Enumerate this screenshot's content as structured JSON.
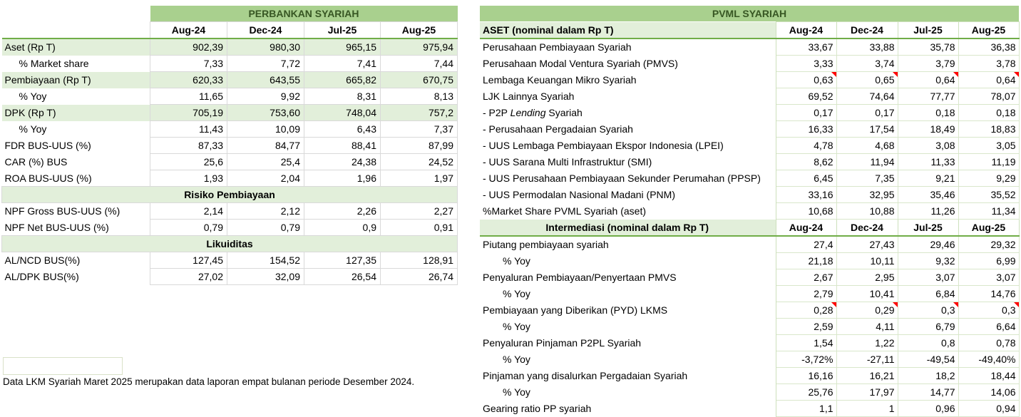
{
  "colors": {
    "title_bg": "#A9D08E",
    "title_text": "#375623",
    "highlight_row_bg": "#E2EFDA",
    "header_underline": "#70AD47",
    "comment_marker": "#FF0000"
  },
  "perbankan": {
    "title": "PERBANKAN SYARIAH",
    "columns": [
      "Aug-24",
      "Dec-24",
      "Jul-25",
      "Aug-25"
    ],
    "rows": [
      {
        "label": "Aset (Rp T)",
        "values": [
          "902,39",
          "980,30",
          "965,15",
          "975,94"
        ],
        "highlight": true
      },
      {
        "label": "% Market share",
        "indent": true,
        "values": [
          "7,33",
          "7,72",
          "7,41",
          "7,44"
        ]
      },
      {
        "label": "Pembiayaan (Rp T)",
        "values": [
          "620,33",
          "643,55",
          "665,82",
          "670,75"
        ],
        "highlight": true
      },
      {
        "label": "% Yoy",
        "indent": true,
        "values": [
          "11,65",
          "9,92",
          "8,31",
          "8,13"
        ]
      },
      {
        "label": "DPK (Rp T)",
        "values": [
          "705,19",
          "753,60",
          "748,04",
          "757,2"
        ],
        "highlight": true
      },
      {
        "label": "% Yoy",
        "indent": true,
        "values": [
          "11,43",
          "10,09",
          "6,43",
          "7,37"
        ]
      },
      {
        "label": "FDR BUS-UUS (%)",
        "values": [
          "87,33",
          "84,77",
          "88,41",
          "87,99"
        ]
      },
      {
        "label": "CAR (%) BUS",
        "values": [
          "25,6",
          "25,4",
          "24,38",
          "24,52"
        ]
      },
      {
        "label": "ROA  BUS-UUS (%)",
        "values": [
          "1,93",
          "2,04",
          "1,96",
          "1,97"
        ]
      },
      {
        "section": "Risiko Pembiayaan"
      },
      {
        "label": "NPF Gross BUS-UUS (%)",
        "values": [
          "2,14",
          "2,12",
          "2,26",
          "2,27"
        ]
      },
      {
        "label": "NPF Net BUS-UUS (%)",
        "values": [
          "0,79",
          "0,79",
          "0,9",
          "0,91"
        ]
      },
      {
        "section": "Likuiditas"
      },
      {
        "label": "AL/NCD BUS(%)",
        "values": [
          "127,45",
          "154,52",
          "127,35",
          "128,91"
        ]
      },
      {
        "label": "AL/DPK BUS(%)",
        "values": [
          "27,02",
          "32,09",
          "26,54",
          "26,74"
        ]
      }
    ]
  },
  "pvml": {
    "title": "PVML SYARIAH",
    "sections": [
      {
        "header": "ASET (nominal dalam Rp T)",
        "header_align": "left",
        "columns": [
          "Aug-24",
          "Dec-24",
          "Jul-25",
          "Aug-25"
        ],
        "rows": [
          {
            "label": "Perusahaan Pembiayaan Syariah",
            "values": [
              "33,67",
              "33,88",
              "35,78",
              "36,38"
            ]
          },
          {
            "label": "Perusahaan Modal Ventura Syariah (PMVS)",
            "values": [
              "3,33",
              "3,74",
              "3,79",
              "3,78"
            ]
          },
          {
            "label": "Lembaga Keuangan Mikro Syariah",
            "values": [
              "0,63",
              "0,65",
              "0,64",
              "0,64"
            ],
            "comment": true
          },
          {
            "label": "LJK Lainnya Syariah",
            "values": [
              "69,52",
              "74,64",
              "77,77",
              "78,07"
            ]
          },
          {
            "label_pre": "- P2P ",
            "label_italic": "Lending",
            "label_post": " Syariah",
            "values": [
              "0,17",
              "0,17",
              "0,18",
              "0,18"
            ]
          },
          {
            "label": "- Perusahaan Pergadaian Syariah",
            "values": [
              "16,33",
              "17,54",
              "18,49",
              "18,83"
            ]
          },
          {
            "label": "- UUS Lembaga Pembiayaan Ekspor Indonesia (LPEI)",
            "values": [
              "4,78",
              "4,68",
              "3,08",
              "3,05"
            ]
          },
          {
            "label": "- UUS Sarana Multi Infrastruktur (SMI)",
            "values": [
              "8,62",
              "11,94",
              "11,33",
              "11,19"
            ]
          },
          {
            "label": "- UUS Perusahaan Pembiayaan Sekunder Perumahan (PPSP)",
            "values": [
              "6,45",
              "7,35",
              "9,21",
              "9,29"
            ]
          },
          {
            "label": "- UUS Permodalan Nasional Madani (PNM)",
            "values": [
              "33,16",
              "32,95",
              "35,46",
              "35,52"
            ]
          },
          {
            "label": "%Market Share PVML Syariah (aset)",
            "values": [
              "10,68",
              "10,88",
              "11,26",
              "11,34"
            ]
          }
        ]
      },
      {
        "header": "Intermediasi (nominal dalam Rp T)",
        "header_align": "center",
        "columns": [
          "Aug-24",
          "Dec-24",
          "Jul-25",
          "Aug-25"
        ],
        "rows": [
          {
            "label": "Piutang pembiayaan syariah",
            "values": [
              "27,4",
              "27,43",
              "29,46",
              "29,32"
            ]
          },
          {
            "label": "% Yoy",
            "indent": true,
            "values": [
              "21,18",
              "10,11",
              "9,32",
              "6,99"
            ]
          },
          {
            "label": "Penyaluran Pembiayaan/Penyertaan PMVS",
            "values": [
              "2,67",
              "2,95",
              "3,07",
              "3,07"
            ]
          },
          {
            "label": "% Yoy",
            "indent": true,
            "values": [
              "2,79",
              "10,41",
              "6,84",
              "14,76"
            ]
          },
          {
            "label": "Pembiayaan yang Diberikan (PYD) LKMS",
            "values": [
              "0,28",
              "0,29",
              "0,3",
              "0,3"
            ],
            "comment": true
          },
          {
            "label": "% Yoy",
            "indent": true,
            "values": [
              "2,59",
              "4,11",
              "6,79",
              "6,64"
            ]
          },
          {
            "label": "Penyaluran Pinjaman P2PL Syariah",
            "values": [
              "1,54",
              "1,22",
              "0,8",
              "0,78"
            ]
          },
          {
            "label": "% Yoy",
            "indent": true,
            "values": [
              "-3,72%",
              "-27,11",
              "-49,54",
              "-49,40%"
            ]
          },
          {
            "label": "Pinjaman yang disalurkan Pergadaian Syariah",
            "values": [
              "16,16",
              "16,21",
              "18,2",
              "18,44"
            ]
          },
          {
            "label": "% Yoy",
            "indent": true,
            "values": [
              "25,76",
              "17,97",
              "14,77",
              "14,06"
            ]
          },
          {
            "label": "Gearing ratio PP syariah",
            "values": [
              "1,1",
              "1",
              "0,96",
              "0,94"
            ]
          }
        ]
      }
    ]
  },
  "footnote": "Data LKM Syariah Maret 2025 merupakan data laporan empat bulanan periode Desember 2024."
}
